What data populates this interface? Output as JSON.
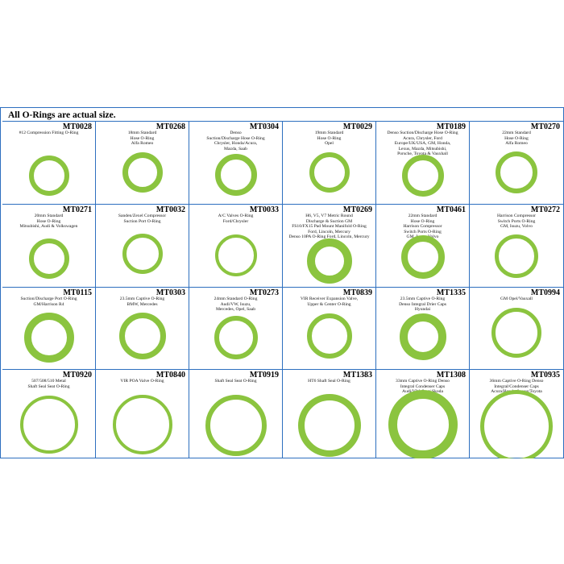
{
  "heading": "All O-Rings are actual size.",
  "ring_color": "#8bc43f",
  "border_color": "#2d6fbf",
  "cells": [
    {
      "pn": "MT0028",
      "desc": "#12 Compression Fitting O-Ring"
    },
    {
      "pn": "MT0268",
      "desc": "18mm Standard\nHose O-Ring\nAlfa Romeo"
    },
    {
      "pn": "MT0304",
      "desc": "Denso\nSuction/Discharge Hose O-Ring\nChrysler, Honda/Acura,\nMazda, Saab"
    },
    {
      "pn": "MT0029",
      "desc": "19mm Standard\nHose O-Ring\nOpel"
    },
    {
      "pn": "MT0189",
      "desc": "Denso Suction/Discharge Hose O-Ring\nAcura, Chrysler, Ford\nEurope/UK/USA, GM, Honda,\nLexus, Mazda, Mitsubishi,\nPorsche, Toyota & Vauxhall"
    },
    {
      "pn": "MT0270",
      "desc": "22mm Standard\nHose O-Ring\nAlfa Romeo"
    },
    {
      "pn": "MT0271",
      "desc": "20mm Standard\nHose O-Ring\nMitsubishi, Audi & Volkswagen"
    },
    {
      "pn": "MT0032",
      "desc": "Sanden/Zexel Compressor\nSuction Port O-Ring"
    },
    {
      "pn": "MT0033",
      "desc": "A/C Valves O-Ring\nFord/Chrysler"
    },
    {
      "pn": "MT0269",
      "desc": "H6, V5, V7 Metric Round\nDischarge & Suction GM\nFS10/FX15 Pad Mount Manifold O-Ring\nFord, Lincoln, Mercury\nDenso 10PA O-Ring Ford, Lincoln, Mercury"
    },
    {
      "pn": "MT0461",
      "desc": "22mm Standard\nHose O-Ring\nHarrison Compressor\nSwitch Ports O-Ring\nGM, Isuzu, Volvo"
    },
    {
      "pn": "MT0272",
      "desc": "Harrison Compressor\nSwitch Ports O-Ring\nGM, Isuzu, Volvo"
    },
    {
      "pn": "MT0115",
      "desc": "Suction/Discharge Port O-Ring\nGM/Harrison R4"
    },
    {
      "pn": "MT0303",
      "desc": "23.5mm Captive O-Ring\nBMW, Mercedes"
    },
    {
      "pn": "MT0273",
      "desc": "24mm Standard O-Ring\nAudi/VW, Isuzu,\nMercedes, Opel, Saab"
    },
    {
      "pn": "MT0839",
      "desc": "VIR Receiver Expansion Valve,\nUpper & Center O-Ring"
    },
    {
      "pn": "MT1335",
      "desc": "23.5mm Captive O-Ring\nDenso Integral Drier Caps\nHyundai"
    },
    {
      "pn": "MT0994",
      "desc": "GM Opel/Vauxall"
    },
    {
      "pn": "MT0920",
      "desc": "507/508/510 Metal\nShaft Seal Seat O-Ring"
    },
    {
      "pn": "MT0840",
      "desc": "VIR POA Valve O-Ring"
    },
    {
      "pn": "MT0919",
      "desc": "Shaft Seal Seat O-Ring"
    },
    {
      "pn": "MT1383",
      "desc": "HT6 Shaft Seal O-Ring"
    },
    {
      "pn": "MT1308",
      "desc": "33mm Captive O-Ring Denso\nIntegral Condenser Caps\nAudi/VW, Seat/ Skoda"
    },
    {
      "pn": "MT0935",
      "desc": "36mm Captive O-Ring Denso\nIntegral/Condenser Caps\nAcura/Honda, Lexus/Toyota"
    }
  ]
}
